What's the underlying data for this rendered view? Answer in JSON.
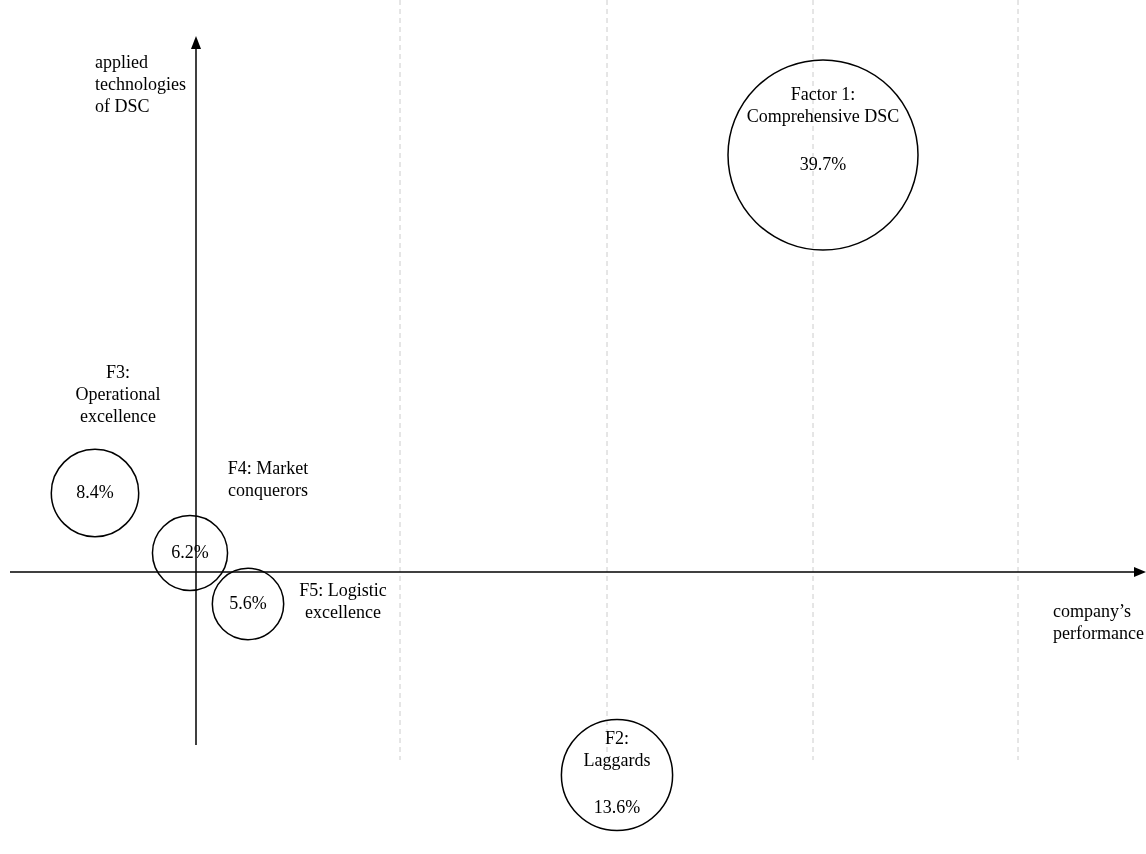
{
  "chart_data": {
    "type": "other",
    "xlabel": "company’s performance",
    "ylabel": "applied technologies of DSC",
    "categories": [
      "Factor 1: Comprehensive DSC",
      "F2: Laggards",
      "F3: Operational excellence",
      "F4: Market conquerors",
      "F5: Logistic excellence"
    ],
    "values": [
      39.7,
      13.6,
      8.4,
      6.2,
      5.6
    ],
    "value_labels": [
      "39.7%",
      "13.6%",
      "8.4%",
      "6.2%",
      "5.6%"
    ],
    "color": "#000000"
  }
}
